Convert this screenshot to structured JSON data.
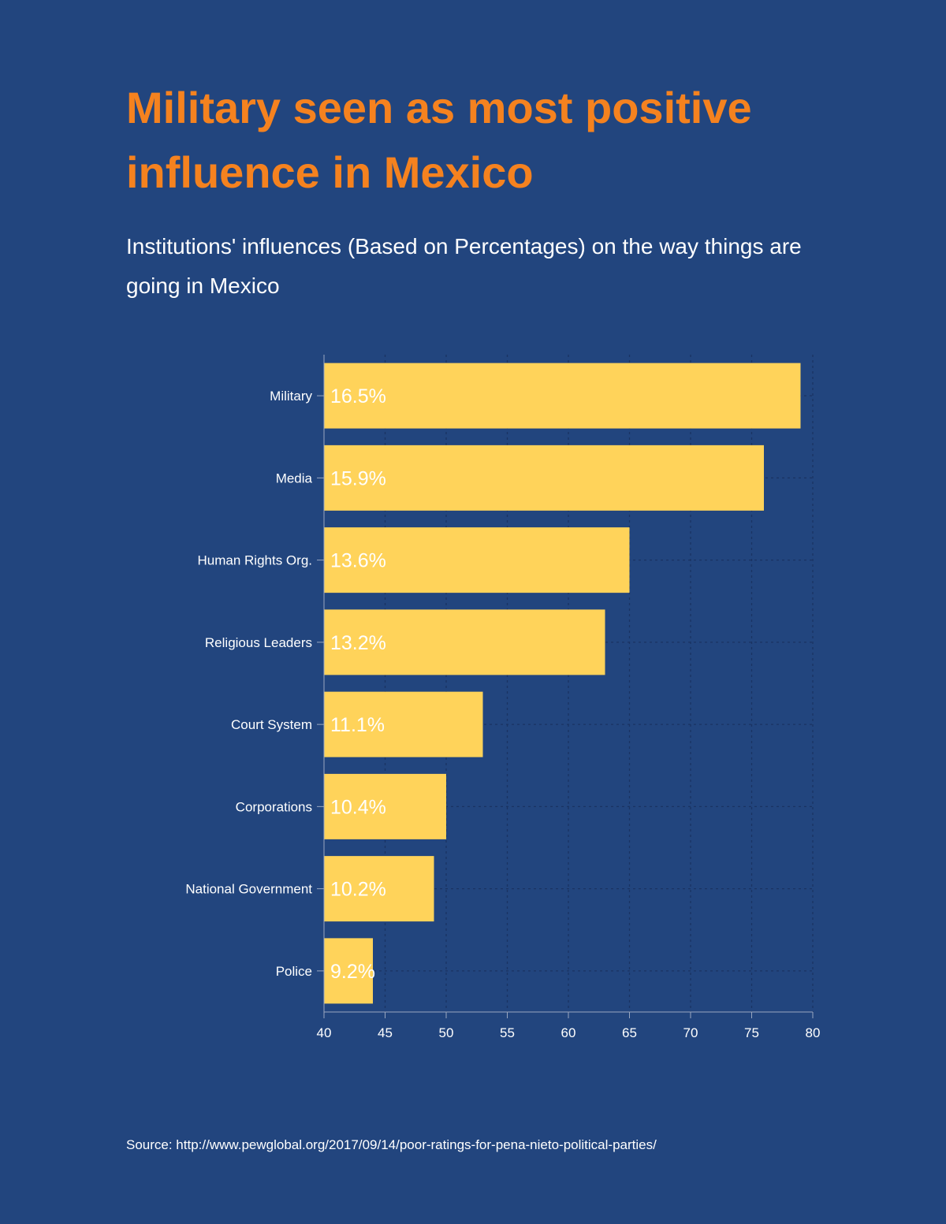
{
  "title": "Military seen as most positive influence in Mexico",
  "subtitle": "Institutions' influences  (Based on Percentages) on the way things are going in Mexico",
  "source": "Source: http://www.pewglobal.org/2017/09/14/poor-ratings-for-pena-nieto-political-parties/",
  "colors": {
    "background": "#22457e",
    "title": "#f5821f",
    "bar": "#ffd35a",
    "text": "#ffffff",
    "grid": "#1a3362"
  },
  "chart_data": {
    "type": "bar",
    "orientation": "horizontal",
    "title": "",
    "xlabel": "",
    "ylabel": "",
    "categories": [
      "Military",
      "Media",
      "Human Rights Org.",
      "Religious Leaders",
      "Court System",
      "Corporations",
      "National Government",
      "Police"
    ],
    "values": [
      79,
      76,
      65,
      63,
      53,
      50,
      49,
      44
    ],
    "data_labels": [
      "16.5%",
      "15.9%",
      "13.6%",
      "13.2%",
      "11.1%",
      "10.4%",
      "10.2%",
      "9.2%"
    ],
    "xlim": [
      40,
      80
    ],
    "xticks": [
      "40",
      "45",
      "50",
      "55",
      "60",
      "65",
      "70",
      "75",
      "80"
    ],
    "grid": true,
    "legend": "none"
  }
}
